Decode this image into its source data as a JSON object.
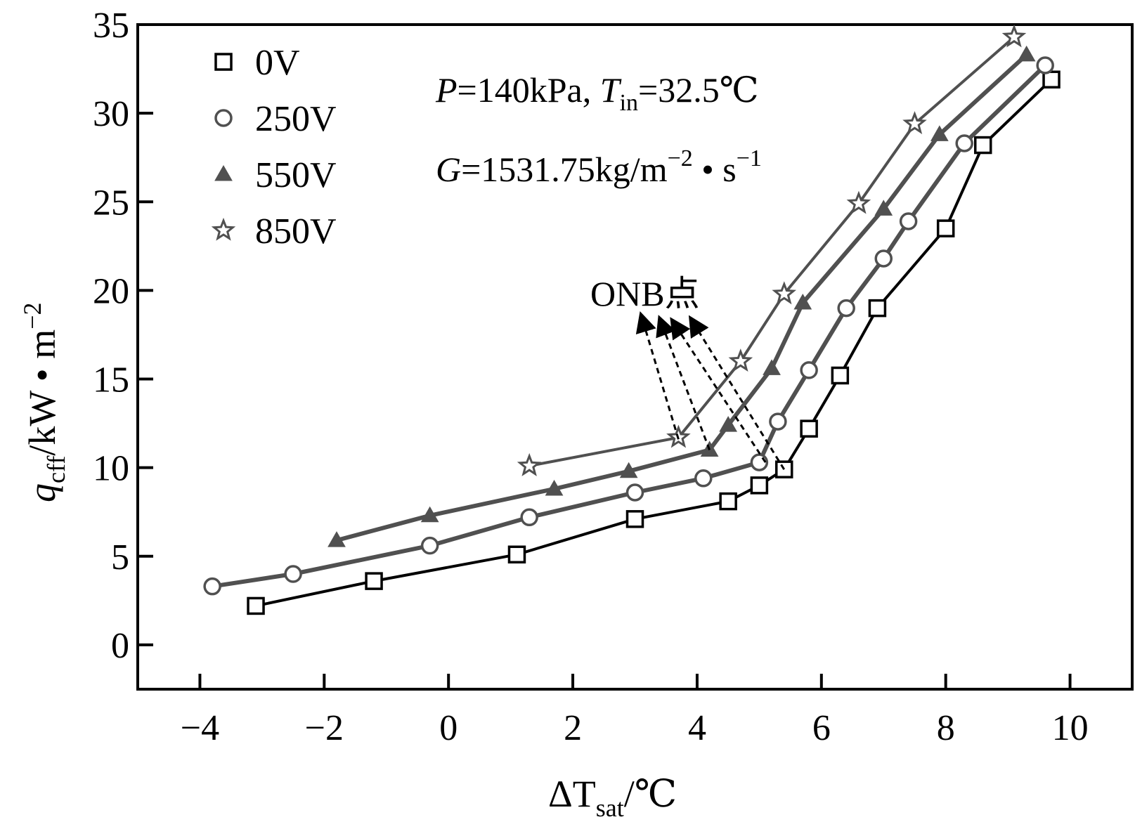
{
  "chart_data": {
    "type": "line",
    "xlabel": "ΔT",
    "xlabel_sub": "sat",
    "xlabel_unit": "/℃",
    "ylabel": "q",
    "ylabel_sub": "cff",
    "ylabel_unit": "/kW • m",
    "ylabel_unit_sup": "−2",
    "xlim": [
      -5,
      11
    ],
    "ylim": [
      -2.5,
      35
    ],
    "xticks": [
      -4,
      -2,
      0,
      2,
      4,
      6,
      8,
      10
    ],
    "xtick_labels": [
      "−4",
      "−2",
      "0",
      "2",
      "4",
      "6",
      "8",
      "10"
    ],
    "yticks": [
      0,
      5,
      10,
      15,
      20,
      25,
      30,
      35
    ],
    "ytick_labels": [
      "0",
      "5",
      "10",
      "15",
      "20",
      "25",
      "30",
      "35"
    ],
    "legend_position": "top-left",
    "condition_line1": {
      "P": "P",
      "p_value": "=140kPa, ",
      "T": "T",
      "T_sub": "in",
      "t_value": "=32.5℃"
    },
    "condition_line2": {
      "G": "G",
      "g_value": "=1531.75kg/m",
      "sup1": "−2",
      "mid": " • s",
      "sup2": "−1"
    },
    "annotation": {
      "text": "ONB点",
      "arrow_targets": [
        [
          3.7,
          11.6
        ],
        [
          4.2,
          11.0
        ],
        [
          5.1,
          10.3
        ],
        [
          5.4,
          9.9
        ]
      ],
      "arrow_heads": [
        [
          3.1,
          18.6
        ],
        [
          3.4,
          18.4
        ],
        [
          3.6,
          18.3
        ],
        [
          3.9,
          18.4
        ]
      ]
    },
    "series": [
      {
        "name": "0V",
        "marker": "square",
        "color": "#000000",
        "line_width": 4,
        "x": [
          -3.1,
          -1.2,
          1.1,
          3.0,
          4.5,
          5.0,
          5.4,
          5.8,
          6.3,
          6.9,
          8.0,
          8.6,
          9.7
        ],
        "y": [
          2.2,
          3.6,
          5.1,
          7.1,
          8.1,
          9.0,
          9.9,
          12.2,
          15.2,
          19.0,
          23.5,
          28.2,
          31.9
        ]
      },
      {
        "name": "250V",
        "marker": "circle",
        "color": "#505050",
        "line_width": 6,
        "x": [
          -3.8,
          -2.5,
          -0.3,
          1.3,
          3.0,
          4.1,
          5.0,
          5.3,
          5.8,
          6.4,
          7.0,
          7.4,
          8.3,
          9.6
        ],
        "y": [
          3.3,
          4.0,
          5.6,
          7.2,
          8.6,
          9.4,
          10.3,
          12.6,
          15.5,
          19.0,
          21.8,
          23.9,
          28.3,
          32.7
        ]
      },
      {
        "name": "550V",
        "marker": "triangle",
        "color": "#505050",
        "line_width": 6,
        "x": [
          -1.8,
          -0.3,
          1.7,
          2.9,
          4.2,
          4.5,
          5.2,
          5.7,
          7.0,
          7.9,
          9.3
        ],
        "y": [
          5.9,
          7.3,
          8.8,
          9.8,
          11.0,
          12.4,
          15.6,
          19.3,
          24.6,
          28.8,
          33.3
        ]
      },
      {
        "name": "850V",
        "marker": "star",
        "color": "#505050",
        "line_width": 4,
        "x": [
          1.3,
          3.7,
          4.7,
          5.4,
          6.6,
          7.5,
          9.1
        ],
        "y": [
          10.1,
          11.7,
          16.0,
          19.8,
          24.9,
          29.4,
          34.3
        ]
      }
    ]
  }
}
